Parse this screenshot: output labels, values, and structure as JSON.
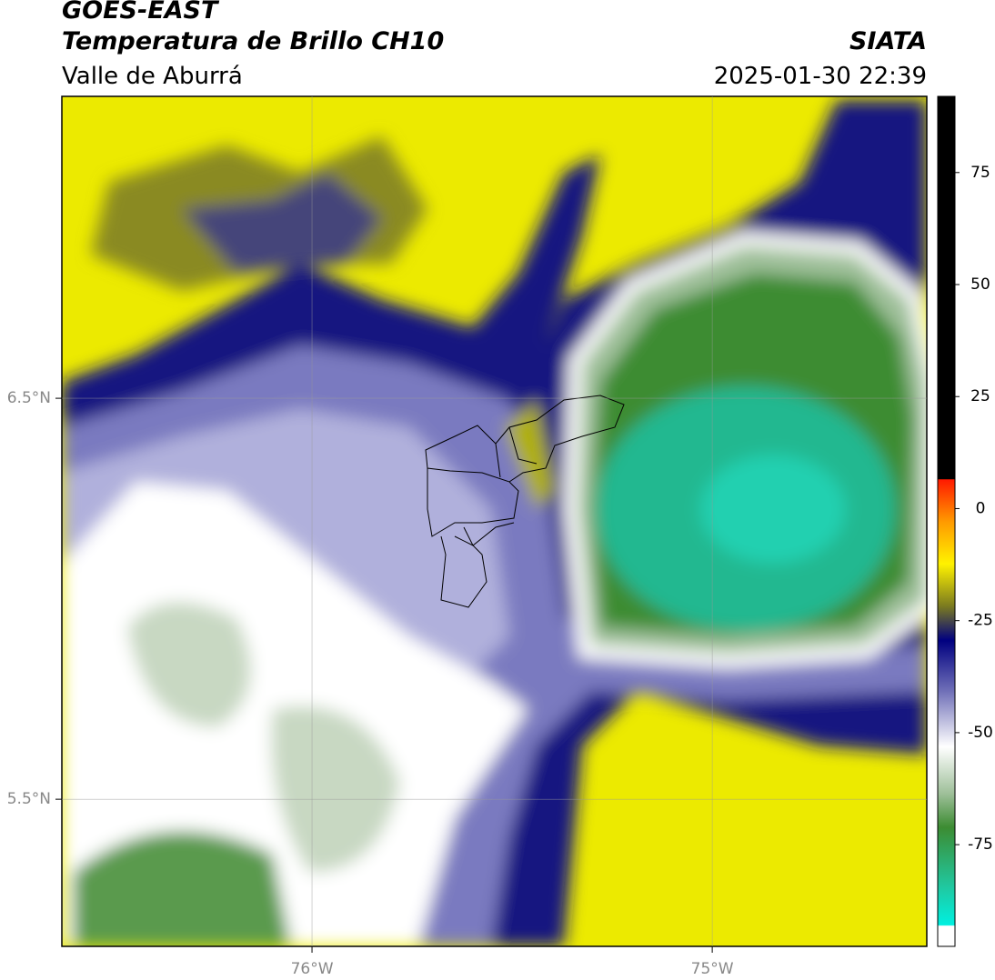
{
  "header": {
    "title": "GOES-EAST",
    "subtitle": "Temperatura de Brillo CH10",
    "region": "Valle de Aburrá",
    "source": "SIATA",
    "datetime": "2025-01-30 22:39"
  },
  "map": {
    "lonlim": [
      -76.625,
      -74.464
    ],
    "latlim": [
      5.133,
      7.253
    ],
    "lonticks": [
      {
        "value": -76,
        "label": "76°W"
      },
      {
        "value": -75,
        "label": "75°W"
      }
    ],
    "latticks": [
      {
        "value": 6.5,
        "label": "6.5°N"
      },
      {
        "value": 5.5,
        "label": "5.5°N"
      }
    ]
  },
  "colorbar": {
    "lim": [
      -97.7,
      92
    ],
    "ticks": [
      75,
      50,
      25,
      0,
      -25,
      -50,
      -75
    ]
  }
}
